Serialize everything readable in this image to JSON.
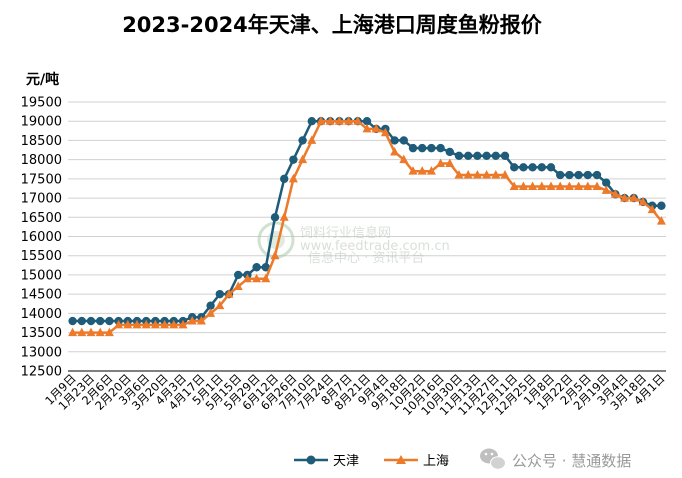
{
  "chart_data": {
    "type": "line",
    "title": "2023-2024年天津、上海港口周度鱼粉报价",
    "ylabel": "元/吨",
    "ylim": [
      12500,
      19500
    ],
    "ytick_step": 500,
    "grid": "horizontal",
    "legend_position": "bottom-center",
    "x_tick_labels": [
      "1月9日",
      "1月23日",
      "2月6日",
      "2月20日",
      "3月6日",
      "3月20日",
      "4月3日",
      "4月17日",
      "5月1日",
      "5月15日",
      "5月29日",
      "6月12日",
      "6月26日",
      "7月10日",
      "7月24日",
      "8月7日",
      "8月21日",
      "9月4日",
      "9月18日",
      "10月2日",
      "10月16日",
      "10月30日",
      "11月13日",
      "11月27日",
      "12月11日",
      "12月25日",
      "1月8日",
      "1月22日",
      "2月5日",
      "2月19日",
      "3月4日",
      "3月18日",
      "4月1日"
    ],
    "series": [
      {
        "name": "天津",
        "color": "#1f5c7a",
        "marker": "circle",
        "values": [
          13800,
          13800,
          13800,
          13800,
          13800,
          13800,
          13800,
          13800,
          13800,
          13800,
          13800,
          13800,
          13800,
          13900,
          13900,
          14200,
          14500,
          14500,
          15000,
          15000,
          15200,
          15200,
          16500,
          17500,
          18000,
          18500,
          19000,
          19000,
          19000,
          19000,
          19000,
          19000,
          19000,
          18800,
          18800,
          18500,
          18500,
          18300,
          18300,
          18300,
          18300,
          18200,
          18100,
          18100,
          18100,
          18100,
          18100,
          18100,
          17800,
          17800,
          17800,
          17800,
          17800,
          17600,
          17600,
          17600,
          17600,
          17600,
          17400,
          17100,
          17000,
          17000,
          16900,
          16800,
          16800
        ]
      },
      {
        "name": "上海",
        "color": "#ec7a2a",
        "marker": "triangle",
        "values": [
          13500,
          13500,
          13500,
          13500,
          13500,
          13700,
          13700,
          13700,
          13700,
          13700,
          13700,
          13700,
          13700,
          13800,
          13800,
          14000,
          14200,
          14500,
          14700,
          14900,
          14900,
          14900,
          15500,
          16500,
          17500,
          18000,
          18500,
          19000,
          19000,
          19000,
          19000,
          19000,
          18800,
          18800,
          18700,
          18200,
          18000,
          17700,
          17700,
          17700,
          17900,
          17900,
          17600,
          17600,
          17600,
          17600,
          17600,
          17600,
          17300,
          17300,
          17300,
          17300,
          17300,
          17300,
          17300,
          17300,
          17300,
          17300,
          17200,
          17100,
          17000,
          17000,
          16900,
          16700,
          16400
        ]
      }
    ]
  },
  "watermark": {
    "line1": "饲料行业信息网",
    "line2": "www.feedtrade.com.cn",
    "line3": "信息中心 · 资讯平台"
  },
  "brand": {
    "text": "公众号 · 慧通数据",
    "icon": "wechat-icon"
  }
}
